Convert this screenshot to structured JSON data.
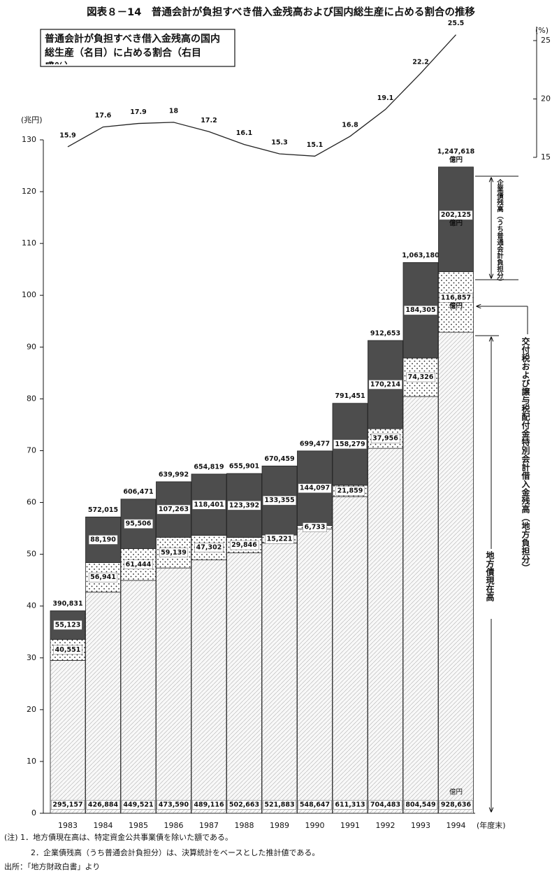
{
  "chart_data": {
    "type": "bar",
    "title": "図表８－14　普通会計が負担すべき借入金残高および国内総生産に占める割合の推移",
    "y_label": "(兆円)",
    "y2_label": "(%)",
    "x_label": "(年度末)",
    "unit_label": "億円",
    "categories": [
      "1983",
      "1984",
      "1985",
      "1986",
      "1987",
      "1988",
      "1989",
      "1990",
      "1991",
      "1992",
      "1993",
      "1994"
    ],
    "ylim": [
      0,
      130
    ],
    "yticks": [
      0,
      10,
      20,
      30,
      40,
      50,
      60,
      70,
      80,
      90,
      100,
      110,
      120,
      130
    ],
    "y2lim": [
      15,
      26.2
    ],
    "y2ticks": [
      15,
      20,
      25
    ],
    "series": [
      {
        "name": "地方債現在高",
        "color": "#f8f8f8",
        "values": [
          29.5157,
          42.6884,
          44.9521,
          47.359,
          48.9116,
          50.2663,
          52.1883,
          54.8647,
          61.1313,
          70.4483,
          80.4549,
          92.8636
        ],
        "value_labels": [
          "295,157",
          "426,884",
          "449,521",
          "473,590",
          "489,116",
          "502,663",
          "521,883",
          "548,647",
          "611,313",
          "704,483",
          "804,549",
          "928,636"
        ]
      },
      {
        "name": "交付税および譲与税配付金特別会計借入金残高（地方負担分）",
        "color": "#ffffff",
        "values": [
          4.0551,
          5.6941,
          6.1444,
          5.9139,
          4.7302,
          2.9846,
          1.5221,
          0.6733,
          2.1859,
          3.7956,
          7.4326,
          11.6857
        ],
        "value_labels": [
          "40,551",
          "56,941",
          "61,444",
          "59,139",
          "47,302",
          "29,846",
          "15,221",
          "6,733",
          "21,859",
          "37,956",
          "74,326",
          "116,857"
        ]
      },
      {
        "name": "企業債残高（うち普通会計負担分）",
        "color": "#4d4d4d",
        "values": [
          5.5123,
          8.819,
          9.5506,
          10.7263,
          11.8401,
          12.3392,
          13.3355,
          14.4097,
          15.8279,
          17.0214,
          18.4305,
          20.2125
        ],
        "value_labels": [
          "55,123",
          "88,190",
          "95,506",
          "107,263",
          "118,401",
          "123,392",
          "133,355",
          "144,097",
          "158,279",
          "170,214",
          "184,305",
          "202,125"
        ]
      },
      {
        "name": "普通会計が負担すべき借入金残高の国内総生産（名目）に占める割合（右目盛％）",
        "type": "line",
        "axis": "y2",
        "color": "#222222",
        "values": [
          15.9,
          17.6,
          17.9,
          18.0,
          17.2,
          16.1,
          15.3,
          15.1,
          16.8,
          19.1,
          22.2,
          25.5
        ]
      }
    ],
    "totals": [
      39.0831,
      57.2015,
      60.6471,
      63.9992,
      65.4819,
      65.5901,
      67.0459,
      69.9477,
      79.1451,
      91.2653,
      106.318,
      124.7618
    ],
    "total_labels": [
      "390,831",
      "572,015",
      "606,471",
      "639,992",
      "654,819",
      "655,901",
      "670,459",
      "699,477",
      "791,451",
      "912,653",
      "1,063,180",
      "1,247,618"
    ],
    "notes": [
      "(注) 1．地方債現在高は、特定資金公共事業債を除いた額である。",
      "2．企業債残高（うち普通会計負担分）は、決算統計をベースとした推計値である。"
    ],
    "source": "出所：「地方財政白書」より"
  }
}
